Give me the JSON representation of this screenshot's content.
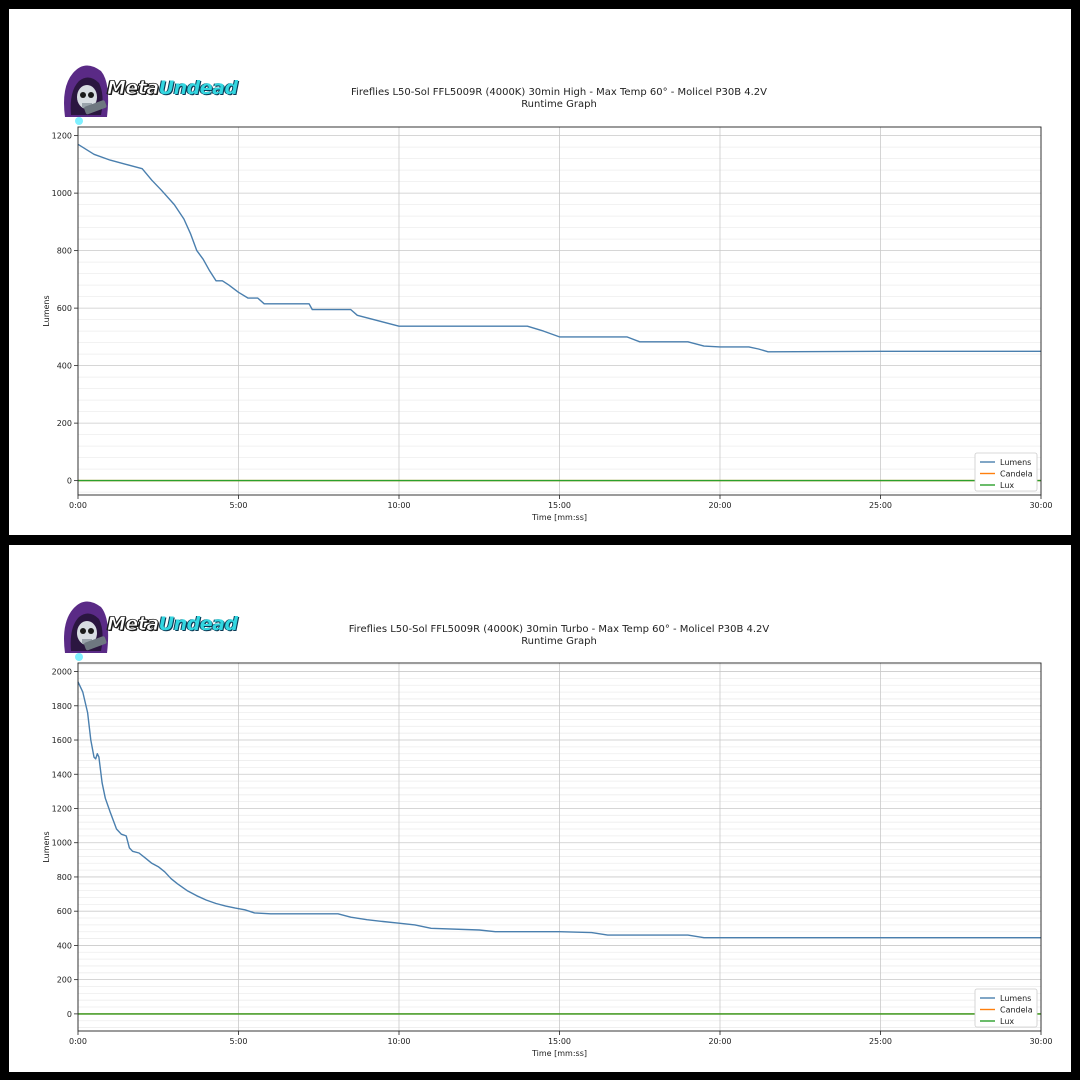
{
  "logo": {
    "word1": "Meta",
    "word2": "Undead"
  },
  "colors": {
    "lumens": "#4a7fae",
    "candela": "#ff7f0e",
    "lux": "#2ca02c",
    "grid_major": "#c9c9c9",
    "grid_minor": "#ededed"
  },
  "chart_data": [
    {
      "type": "line",
      "title": "Fireflies L50-Sol FFL5009R (4000K) 30min High - Max Temp 60° - Molicel P30B 4.2V",
      "subtitle": "Runtime Graph",
      "xlabel": "Time [mm:ss]",
      "ylabel": "Lumens",
      "xlim": [
        0,
        30
      ],
      "ylim": [
        -50,
        1230
      ],
      "xticks": [
        0,
        5,
        10,
        15,
        20,
        25,
        30
      ],
      "xtick_labels": [
        "0:00",
        "5:00",
        "10:00",
        "15:00",
        "20:00",
        "25:00",
        "30:00"
      ],
      "yticks": [
        0,
        200,
        400,
        600,
        800,
        1000,
        1200
      ],
      "ytick_labels": [
        "0",
        "200",
        "400",
        "600",
        "800",
        "1000",
        "1200"
      ],
      "grid": true,
      "legend_position": "bottom-right",
      "series": [
        {
          "name": "Lumens",
          "x": [
            0,
            0.5,
            1,
            1.5,
            2,
            2.3,
            2.6,
            3,
            3.3,
            3.5,
            3.7,
            3.9,
            4.1,
            4.3,
            4.5,
            4.7,
            5,
            5.3,
            5.6,
            5.8,
            7.2,
            7.3,
            8.5,
            8.7,
            10,
            14,
            14.5,
            15,
            16,
            17.1,
            17.5,
            19,
            19.5,
            20,
            20.9,
            21.2,
            21.5,
            25,
            30
          ],
          "y": [
            1170,
            1135,
            1115,
            1100,
            1085,
            1045,
            1010,
            960,
            910,
            860,
            800,
            770,
            730,
            695,
            695,
            680,
            655,
            635,
            635,
            615,
            615,
            595,
            595,
            575,
            537,
            537,
            520,
            500,
            500,
            500,
            483,
            483,
            468,
            465,
            465,
            458,
            448,
            450,
            450
          ]
        },
        {
          "name": "Candela",
          "x": [
            0,
            30
          ],
          "y": [
            0,
            0
          ]
        },
        {
          "name": "Lux",
          "x": [
            0,
            30
          ],
          "y": [
            0,
            0
          ]
        }
      ]
    },
    {
      "type": "line",
      "title": "Fireflies L50-Sol FFL5009R (4000K) 30min Turbo - Max Temp 60° - Molicel P30B 4.2V",
      "subtitle": "Runtime Graph",
      "xlabel": "Time [mm:ss]",
      "ylabel": "Lumens",
      "xlim": [
        0,
        30
      ],
      "ylim": [
        -100,
        2050
      ],
      "xticks": [
        0,
        5,
        10,
        15,
        20,
        25,
        30
      ],
      "xtick_labels": [
        "0:00",
        "5:00",
        "10:00",
        "15:00",
        "20:00",
        "25:00",
        "30:00"
      ],
      "yticks": [
        0,
        200,
        400,
        600,
        800,
        1000,
        1200,
        1400,
        1600,
        1800,
        2000
      ],
      "ytick_labels": [
        "0",
        "200",
        "400",
        "600",
        "800",
        "1000",
        "1200",
        "1400",
        "1600",
        "1800",
        "2000"
      ],
      "grid": true,
      "legend_position": "bottom-right",
      "series": [
        {
          "name": "Lumens",
          "x": [
            0,
            0.15,
            0.3,
            0.4,
            0.5,
            0.55,
            0.6,
            0.65,
            0.75,
            0.85,
            1,
            1.2,
            1.35,
            1.5,
            1.6,
            1.7,
            1.9,
            2.1,
            2.3,
            2.5,
            2.7,
            2.9,
            3.1,
            3.4,
            3.7,
            4,
            4.3,
            4.6,
            4.9,
            5.2,
            5.5,
            6,
            8.1,
            8.5,
            9,
            9.5,
            10,
            10.5,
            11,
            12.5,
            13,
            15,
            16,
            16.5,
            19,
            19.5,
            25,
            30
          ],
          "y": [
            1940,
            1880,
            1760,
            1600,
            1500,
            1490,
            1520,
            1500,
            1350,
            1260,
            1180,
            1080,
            1050,
            1040,
            970,
            950,
            940,
            910,
            880,
            860,
            830,
            790,
            760,
            720,
            690,
            665,
            645,
            630,
            618,
            608,
            590,
            585,
            585,
            565,
            550,
            540,
            530,
            520,
            500,
            490,
            480,
            480,
            475,
            460,
            460,
            445,
            445,
            445
          ]
        },
        {
          "name": "Candela",
          "x": [
            0,
            30
          ],
          "y": [
            0,
            0
          ]
        },
        {
          "name": "Lux",
          "x": [
            0,
            30
          ],
          "y": [
            0,
            0
          ]
        }
      ]
    }
  ]
}
